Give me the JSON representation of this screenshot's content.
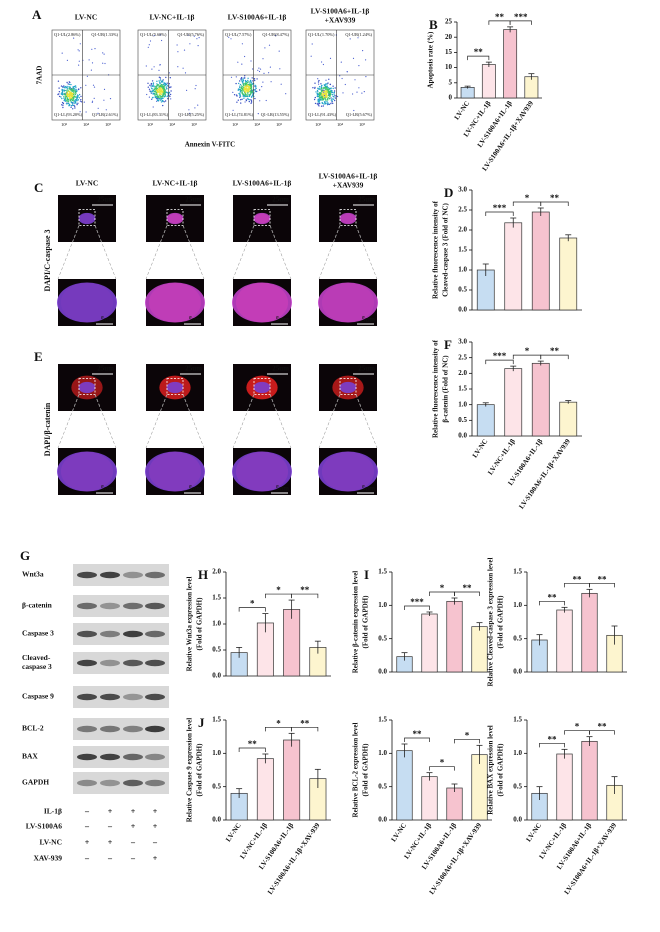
{
  "flow": {
    "panel": "A",
    "titles": [
      "LV-NC",
      "LV-NC+IL-1β",
      "LV-S100A6+IL-1β",
      [
        "LV-S100A6+IL-1β",
        "+XAV939"
      ]
    ],
    "ylabel": "7AAD",
    "xlabel": "Annexin V-FITC",
    "axis_ticks": [
      "10³",
      "10⁴",
      "10⁵"
    ],
    "quadrants": [
      [
        "Q1-UL(2.86%)",
        "Q1-UR(1.33%)",
        "Q1-LL(93.20%)",
        "Q1-LR(2.61%)"
      ],
      [
        "Q1-UL(5.68%)",
        "Q1-UR(5.76%)",
        "Q1-LL(83.31%)",
        "Q1-LR(5.25%)"
      ],
      [
        "Q1-UL(7.57%)",
        "Q1-UR(8.47%)",
        "Q1-LL(74.81%)",
        "Q1-LR(13.55%)"
      ],
      [
        "Q1-UL(1.70%)",
        "Q1-UR(1.24%)",
        "Q1-LL(91.43%)",
        "Q1-LR(5.67%)"
      ]
    ]
  },
  "if_images": {
    "panels": [
      "C",
      "E"
    ],
    "columns": [
      [
        "LV-NC"
      ],
      [
        "LV-NC+IL-1β"
      ],
      [
        "LV-S100A6+IL-1β"
      ],
      [
        "LV-S100A6+IL-1β",
        "+XAV939"
      ]
    ],
    "stains": [
      "DAPI/C-caspase 3",
      "DAPI/β-catenin"
    ],
    "scale_large": "25um",
    "scale_small": "5um"
  },
  "western": {
    "panel": "G",
    "proteins": [
      [
        "Wnt3a"
      ],
      [
        "β-catenin"
      ],
      [
        "Caspase 3"
      ],
      [
        "Cleaved-",
        "caspase 3"
      ],
      [
        "Caspase 9"
      ],
      [
        "BCL-2"
      ],
      [
        "BAX"
      ],
      [
        "GAPDH"
      ]
    ],
    "conditions": [
      {
        "name": "IL-1β",
        "signs": [
          "–",
          "+",
          "+",
          "+"
        ]
      },
      {
        "name": "LV-S100A6",
        "signs": [
          "–",
          "–",
          "+",
          "+"
        ]
      },
      {
        "name": "LV-NC",
        "signs": [
          "+",
          "+",
          "–",
          "–"
        ]
      },
      {
        "name": "XAV-939",
        "signs": [
          "–",
          "–",
          "–",
          "+"
        ]
      }
    ]
  },
  "chart_data": [
    {
      "type": "bar",
      "panel": "B",
      "ylabel": [
        "Apoptosis rate (%)"
      ],
      "categories": [
        "LV-NC",
        "LV-NC+IL-1β",
        "LV-S100A6+IL-1β",
        "LV-S100A6+IL-1β+XAV939"
      ],
      "values": [
        3.5,
        11,
        22.5,
        7
      ],
      "errors": [
        0.4,
        0.8,
        0.9,
        1
      ],
      "colors": [
        "#c6ddf2",
        "#fde4e8",
        "#f6c3cf",
        "#fdf5cf"
      ],
      "ylim": [
        0,
        25
      ],
      "yticks": [
        0,
        5,
        10,
        15,
        20,
        25
      ],
      "annotations": [
        "**",
        "**",
        "***"
      ]
    },
    {
      "type": "bar",
      "panel": "D",
      "ylabel": [
        "Relative fluorescence intensity of",
        "Cleaved-caspase 3 (Fold of NC)"
      ],
      "categories": [
        null,
        null,
        null,
        null
      ],
      "values": [
        1.0,
        2.18,
        2.45,
        1.8
      ],
      "errors": [
        0.15,
        0.12,
        0.1,
        0.08
      ],
      "colors": [
        "#c6ddf2",
        "#fde4e8",
        "#f6c3cf",
        "#fdf5cf"
      ],
      "ylim": [
        0,
        3
      ],
      "yticks": [
        {
          "value": 0,
          "label": "0.0"
        },
        0.5,
        {
          "value": 1,
          "label": "1.0"
        },
        1.5,
        {
          "value": 2,
          "label": "2.0"
        },
        2.5,
        {
          "value": 3,
          "label": "3.0"
        }
      ],
      "annotations": [
        "***",
        "*",
        "**"
      ]
    },
    {
      "type": "bar",
      "panel": "F",
      "ylabel": [
        "Relative fluorescence intensity of",
        "β-catenin (Fold of NC)"
      ],
      "categories": [
        "LV-NC",
        "LV-NC+IL-1β",
        "LV-S100A6+IL-1β",
        "LV-S100A6+IL-1β+XAV939"
      ],
      "values": [
        1.0,
        2.15,
        2.32,
        1.08
      ],
      "errors": [
        0.06,
        0.08,
        0.07,
        0.05
      ],
      "colors": [
        "#c6ddf2",
        "#fde4e8",
        "#f6c3cf",
        "#fdf5cf"
      ],
      "ylim": [
        0,
        3
      ],
      "yticks": [
        {
          "value": 0,
          "label": "0.0"
        },
        0.5,
        {
          "value": 1,
          "label": "1.0"
        },
        1.5,
        {
          "value": 2,
          "label": "2.0"
        },
        2.5,
        {
          "value": 3,
          "label": "3.0"
        }
      ],
      "annotations": [
        "***",
        "*",
        "**"
      ]
    },
    {
      "type": "bar",
      "panel": "H",
      "ylabel": [
        "Relative Wnt3a expression level",
        "(Fold of GAPDH)"
      ],
      "categories": [
        null,
        null,
        null,
        null
      ],
      "values": [
        0.45,
        1.02,
        1.28,
        0.55
      ],
      "errors": [
        0.1,
        0.18,
        0.18,
        0.12
      ],
      "colors": [
        "#c6ddf2",
        "#fde4e8",
        "#f6c3cf",
        "#fdf5cf"
      ],
      "ylim": [
        0,
        2
      ],
      "yticks": [
        {
          "value": 0,
          "label": "0.0"
        },
        0.5,
        {
          "value": 1,
          "label": "1.0"
        },
        1.5,
        {
          "value": 2,
          "label": "2.0"
        }
      ],
      "annotations": [
        "*",
        "*",
        "**"
      ]
    },
    {
      "type": "bar",
      "panel": "I",
      "ylabel": [
        "Relative β-catenin expression level",
        "(Fold of GAPDH)"
      ],
      "categories": [
        null,
        null,
        null,
        null
      ],
      "values": [
        0.23,
        0.87,
        1.06,
        0.68
      ],
      "errors": [
        0.06,
        0.03,
        0.05,
        0.06
      ],
      "colors": [
        "#c6ddf2",
        "#fde4e8",
        "#f6c3cf",
        "#fdf5cf"
      ],
      "ylim": [
        0,
        1.5
      ],
      "yticks": [
        {
          "value": 0,
          "label": "0.0"
        },
        0.5,
        {
          "value": 1,
          "label": "1.0"
        },
        1.5
      ],
      "annotations": [
        "***",
        "*",
        "**"
      ]
    },
    {
      "type": "bar",
      "ylabel": [
        "Relative Cleaved-caspase 3 expression level",
        "(Fold of GAPDH)"
      ],
      "categories": [
        null,
        null,
        null,
        null
      ],
      "values": [
        0.48,
        0.93,
        1.18,
        0.55
      ],
      "errors": [
        0.08,
        0.04,
        0.06,
        0.14
      ],
      "colors": [
        "#c6ddf2",
        "#fde4e8",
        "#f6c3cf",
        "#fdf5cf"
      ],
      "ylim": [
        0,
        1.5
      ],
      "yticks": [
        {
          "value": 0,
          "label": "0.0"
        },
        0.5,
        {
          "value": 1,
          "label": "1.0"
        },
        1.5
      ],
      "annotations": [
        "**",
        "**",
        "**"
      ]
    },
    {
      "type": "bar",
      "panel": "J",
      "ylabel": [
        "Relative Caspase 9 expression level",
        "(Fold of GAPDH)"
      ],
      "categories": [
        "LV-NC",
        "LV-NC+IL-1β",
        "LV-S100A6+IL-1β",
        "LV-S100A6+IL-1β+XAV-939"
      ],
      "values": [
        0.4,
        0.92,
        1.2,
        0.62
      ],
      "errors": [
        0.07,
        0.07,
        0.1,
        0.14
      ],
      "colors": [
        "#c6ddf2",
        "#fde4e8",
        "#f6c3cf",
        "#fdf5cf"
      ],
      "ylim": [
        0,
        1.5
      ],
      "yticks": [
        {
          "value": 0,
          "label": "0.0"
        },
        0.5,
        {
          "value": 1,
          "label": "1.0"
        },
        1.5
      ],
      "annotations": [
        "**",
        "*",
        "**"
      ]
    },
    {
      "type": "bar",
      "ylabel": [
        "Relative BCL-2 expression level",
        "(Fold of GAPDH)"
      ],
      "categories": [
        "LV-NC",
        "LV-NC+IL-1β",
        "LV-S100A6+IL-1β",
        "LV-S100A6+IL-1β+XAV-939"
      ],
      "values": [
        1.04,
        0.65,
        0.48,
        0.98
      ],
      "errors": [
        0.1,
        0.06,
        0.06,
        0.14
      ],
      "colors": [
        "#c6ddf2",
        "#fde4e8",
        "#f6c3cf",
        "#fdf5cf"
      ],
      "ylim": [
        0,
        1.5
      ],
      "yticks": [
        {
          "value": 0,
          "label": "0.0"
        },
        0.5,
        {
          "value": 1,
          "label": "1.0"
        },
        1.5
      ],
      "annotations": [
        "**",
        "*",
        "*"
      ]
    },
    {
      "type": "bar",
      "ylabel": [
        "Relative BAX expression level",
        "(Fold of GAPDH)"
      ],
      "categories": [
        "LV-NC",
        "LV-NC+IL-1β",
        "LV-S100A6+IL-1β",
        "LV-S100A6+IL-1β+XAV-939"
      ],
      "values": [
        0.4,
        0.99,
        1.18,
        0.52
      ],
      "errors": [
        0.1,
        0.07,
        0.07,
        0.13
      ],
      "colors": [
        "#c6ddf2",
        "#fde4e8",
        "#f6c3cf",
        "#fdf5cf"
      ],
      "ylim": [
        0,
        1.5
      ],
      "yticks": [
        {
          "value": 0,
          "label": "0.0"
        },
        0.5,
        {
          "value": 1,
          "label": "1.0"
        },
        1.5
      ],
      "annotations": [
        "**",
        "*",
        "**"
      ]
    }
  ]
}
